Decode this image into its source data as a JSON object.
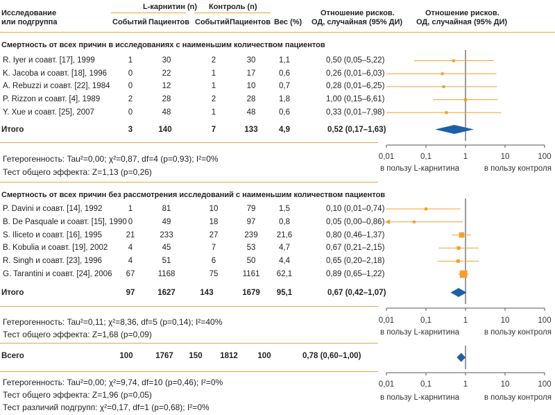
{
  "header": {
    "col_study_line1": "Исследование",
    "col_study_line2": "или подгруппа",
    "col_lcar_group": "L-карнитин (n)",
    "col_ctrl_group": "Контроль (n)",
    "col_events": "Событий",
    "col_patients": "Пациентов",
    "col_weight": "Вес (%)",
    "col_or1_line1": "Отношение рисков.",
    "col_or1_line2": "ОД, случайная (95% ДИ)",
    "col_or2_line1": "Отношение рисков.",
    "col_or2_line2": "ОД, случайная (95% ДИ)"
  },
  "section1": {
    "title": "Смертность от всех причин в исследованиях с наименьшим количеством пациентов",
    "rows": [
      {
        "study": "R. Iyer и соавт. [17], 1999",
        "e1": "1",
        "n1": "30",
        "e2": "2",
        "n2": "30",
        "w": "1,1",
        "ci": "0,50 (0,05–5,22)"
      },
      {
        "study": "K. Jacoba и соавт. [18], 1996",
        "e1": "0",
        "n1": "22",
        "e2": "1",
        "n2": "17",
        "w": "0,6",
        "ci": "0,26 (0,01–6,03)"
      },
      {
        "study": "A. Rebuzzi и соавт. [22], 1984",
        "e1": "0",
        "n1": "12",
        "e2": "1",
        "n2": "10",
        "w": "0,7",
        "ci": "0,28 (0,01–6,25)"
      },
      {
        "study": "P. Rizzon и соавт. [4], 1989",
        "e1": "2",
        "n1": "28",
        "e2": "2",
        "n2": "28",
        "w": "1,8",
        "ci": "1,00 (0,15–6,61)"
      },
      {
        "study": "Y. Xue и соавт. [25], 2007",
        "e1": "0",
        "n1": "48",
        "e2": "1",
        "n2": "48",
        "w": "0,6",
        "ci": "0,33 (0,01–7,98)"
      }
    ],
    "total": {
      "label": "Итого",
      "e1": "3",
      "n1": "140",
      "e2": "7",
      "n2": "133",
      "w": "4,9",
      "ci": "0,52 (0,17–1,63)"
    },
    "heterogeneity": "Гетерогенность: Tau²=0,00; χ²=0,87, df=4 (p=0,93); I²=0%",
    "overall_effect": "Тест общего эффекта: Z=1,13 (p=0,26)"
  },
  "section2": {
    "title": "Смертность от всех причин без рассмотрения исследований с наименьшим количеством пациентов",
    "rows": [
      {
        "study": "P. Davini и соавт. [14], 1992",
        "e1": "1",
        "n1": "81",
        "e2": "10",
        "n2": "79",
        "w": "1,5",
        "ci": "0,10 (0,01–0,74)"
      },
      {
        "study": "B. De Pasquale и соавт. [15], 1990",
        "e1": "0",
        "n1": "49",
        "e2": "18",
        "n2": "97",
        "w": "0,8",
        "ci": "0,05 (0,00–0,86)"
      },
      {
        "study": "S. Iliceto и соавт. [16], 1995",
        "e1": "21",
        "n1": "233",
        "e2": "27",
        "n2": "239",
        "w": "21,6",
        "ci": "0,80 (0,46–1,37)"
      },
      {
        "study": "B. Kobulia и соавт. [19], 2002",
        "e1": "4",
        "n1": "45",
        "e2": "7",
        "n2": "53",
        "w": "4,7",
        "ci": "0,67 (0,21–2,15)"
      },
      {
        "study": "R. Singh и соавт. [23], 1996",
        "e1": "4",
        "n1": "51",
        "e2": "6",
        "n2": "50",
        "w": "4,4",
        "ci": "0,65 (0,20–2,18)"
      },
      {
        "study": "G. Tarantini и соавт. [24], 2006",
        "e1": "67",
        "n1": "1168",
        "e2": "75",
        "n2": "1161",
        "w": "62,1",
        "ci": "0,89 (0,65–1,22)"
      }
    ],
    "total": {
      "label": "Итого",
      "e1": "97",
      "n1": "1627",
      "e2": "143",
      "n2": "1679",
      "w": "95,1",
      "ci": "0,67 (0,42–1,07)"
    },
    "heterogeneity": "Гетерогенность: Tau²=0,11; χ²=8,36, df=5 (p=0,14); I²=40%",
    "overall_effect": "Тест общего эффекта: Z=1,68 (p=0,09)"
  },
  "overall": {
    "label": "Всего",
    "e1": "100",
    "n1": "1767",
    "e2": "150",
    "n2": "1812",
    "w": "100",
    "ci": "0,78 (0,60–1,00)",
    "heterogeneity": "Гетерогенность: Tau²=0,00; χ²=9,74, df=10 (p=0,46); I²=0%",
    "overall_effect": "Тест общего эффекта: Z=1,96 (p=0,05)",
    "subgroup_diff": "Тест различий подгрупп: χ²=0,17, df=1 (p=0,68); I²=0%"
  },
  "axis": {
    "ticks": [
      "0,01",
      "0,1",
      "1",
      "10",
      "100"
    ],
    "favours_left": "в пользу L-карнитина",
    "favours_right": "в пользу контроля"
  },
  "colors": {
    "accent": "#f0a030",
    "diamond": "#1f5fa8",
    "rule": "#e8a33a",
    "axis": "#555555"
  },
  "chart_data": {
    "type": "scatter",
    "x_scale": "log",
    "xlim": [
      0.01,
      100
    ],
    "reference_line": 1,
    "series": [
      {
        "points": [
          {
            "or": 0.5,
            "lo": 0.05,
            "hi": 5.22,
            "weight": 1.1
          },
          {
            "or": 0.26,
            "lo": 0.01,
            "hi": 6.03,
            "weight": 0.6
          },
          {
            "or": 0.28,
            "lo": 0.01,
            "hi": 6.25,
            "weight": 0.7
          },
          {
            "or": 1.0,
            "lo": 0.15,
            "hi": 6.61,
            "weight": 1.8
          },
          {
            "or": 0.33,
            "lo": 0.01,
            "hi": 7.98,
            "weight": 0.6
          }
        ],
        "pooled": {
          "or": 0.52,
          "lo": 0.17,
          "hi": 1.63
        }
      },
      {
        "points": [
          {
            "or": 0.1,
            "lo": 0.01,
            "hi": 0.74,
            "weight": 1.5
          },
          {
            "or": 0.05,
            "lo": 0.0,
            "hi": 0.86,
            "weight": 0.8
          },
          {
            "or": 0.8,
            "lo": 0.46,
            "hi": 1.37,
            "weight": 21.6
          },
          {
            "or": 0.67,
            "lo": 0.21,
            "hi": 2.15,
            "weight": 4.7
          },
          {
            "or": 0.65,
            "lo": 0.2,
            "hi": 2.18,
            "weight": 4.4
          },
          {
            "or": 0.89,
            "lo": 0.65,
            "hi": 1.22,
            "weight": 62.1
          }
        ],
        "pooled": {
          "or": 0.67,
          "lo": 0.42,
          "hi": 1.07
        }
      }
    ],
    "overall_pooled": {
      "or": 0.78,
      "lo": 0.6,
      "hi": 1.0
    }
  }
}
